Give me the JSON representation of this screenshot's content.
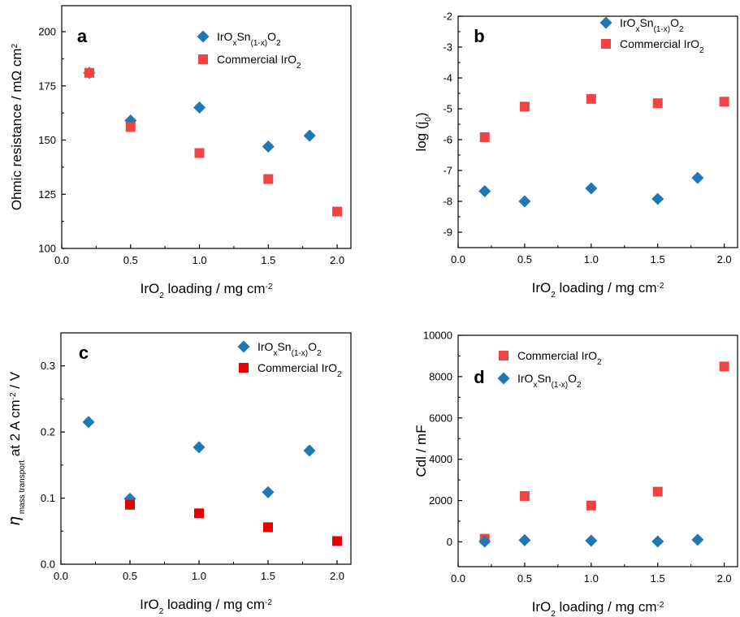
{
  "colors": {
    "blue": "#1F77B4",
    "red_b": "#EF4444",
    "red_c": "#E60000",
    "axis": "#000000"
  },
  "chart_data": [
    {
      "type": "scatter",
      "panel": "a",
      "xlabel": "IrO2 loading / mg cm-2",
      "ylabel": "Ohmic resistance / mΩ cm2",
      "xlim": [
        0.0,
        2.1
      ],
      "ylim": [
        100,
        212
      ],
      "xticks": [
        "0.0",
        "0.5",
        "1.0",
        "1.5",
        "2.0"
      ],
      "yticks": [
        "100",
        "125",
        "150",
        "175",
        "200"
      ],
      "legend_position": "top-right",
      "series": [
        {
          "name": "IrOxSn(1-x)O2",
          "marker": "diamond",
          "color": "#1F77B4",
          "x": [
            0.2,
            0.5,
            1.0,
            1.5,
            1.8
          ],
          "y": [
            181,
            159,
            165,
            147,
            152
          ]
        },
        {
          "name": "Commercial IrO2",
          "marker": "square",
          "color": "#EF4444",
          "x": [
            0.2,
            0.5,
            1.0,
            1.5,
            2.0
          ],
          "y": [
            181,
            156,
            144,
            132,
            117
          ]
        }
      ]
    },
    {
      "type": "scatter",
      "panel": "b",
      "xlabel": "IrO2 loading / mg cm-2",
      "ylabel": "log (j0)",
      "xlim": [
        0.0,
        2.1
      ],
      "ylim": [
        -9.5,
        -2
      ],
      "xticks": [
        "0.0",
        "0.5",
        "1.0",
        "1.5",
        "2.0"
      ],
      "yticks": [
        "-9",
        "-8",
        "-7",
        "-6",
        "-5",
        "-4",
        "-3",
        "-2"
      ],
      "legend_position": "top-right",
      "series": [
        {
          "name": "IrOxSn(1-x)O2",
          "marker": "diamond",
          "color": "#1F77B4",
          "x": [
            0.2,
            0.5,
            1.0,
            1.5,
            1.8
          ],
          "y": [
            -7.67,
            -8.0,
            -7.58,
            -7.92,
            -7.24
          ]
        },
        {
          "name": "Commercial IrO2",
          "marker": "square",
          "color": "#EF4444",
          "x": [
            0.2,
            0.5,
            1.0,
            1.5,
            2.0
          ],
          "y": [
            -5.92,
            -4.93,
            -4.68,
            -4.82,
            -4.77
          ]
        }
      ]
    },
    {
      "type": "scatter",
      "panel": "c",
      "xlabel": "IrO2 loading / mg cm-2",
      "ylabel": "η mass transport at 2 A cm-2 / V",
      "xlim": [
        0.0,
        2.1
      ],
      "ylim": [
        0.0,
        0.35
      ],
      "xticks": [
        "0.0",
        "0.5",
        "1.0",
        "1.5",
        "2.0"
      ],
      "yticks": [
        "0.0",
        "0.1",
        "0.2",
        "0.3"
      ],
      "legend_position": "top-right",
      "series": [
        {
          "name": "IrOxSn(1-x)O2",
          "marker": "diamond",
          "color": "#1F77B4",
          "x": [
            0.2,
            0.5,
            1.0,
            1.5,
            1.8
          ],
          "y": [
            0.215,
            0.099,
            0.177,
            0.109,
            0.172
          ]
        },
        {
          "name": "Commercial IrO2",
          "marker": "square",
          "color": "#E60000",
          "x": [
            0.5,
            1.0,
            1.5,
            2.0
          ],
          "y": [
            0.09,
            0.077,
            0.056,
            0.035
          ]
        }
      ]
    },
    {
      "type": "scatter",
      "panel": "d",
      "xlabel": "IrO2 loading / mg cm-2",
      "ylabel": "Cdl / mF",
      "xlim": [
        0.0,
        2.1
      ],
      "ylim": [
        -1200,
        10000
      ],
      "xticks": [
        "0.0",
        "0.5",
        "1.0",
        "1.5",
        "2.0"
      ],
      "yticks": [
        "0",
        "2000",
        "4000",
        "6000",
        "8000",
        "10000"
      ],
      "legend_position": "top-left",
      "series": [
        {
          "name": "Commercial IrO2",
          "marker": "square",
          "color": "#EF4444",
          "x": [
            0.2,
            0.5,
            1.0,
            1.5,
            2.0
          ],
          "y": [
            150,
            2220,
            1760,
            2430,
            8490
          ]
        },
        {
          "name": "IrOxSn(1-x)O2",
          "marker": "diamond",
          "color": "#1F77B4",
          "x": [
            0.2,
            0.5,
            1.0,
            1.5,
            1.8
          ],
          "y": [
            20,
            80,
            60,
            20,
            100
          ]
        }
      ]
    }
  ]
}
